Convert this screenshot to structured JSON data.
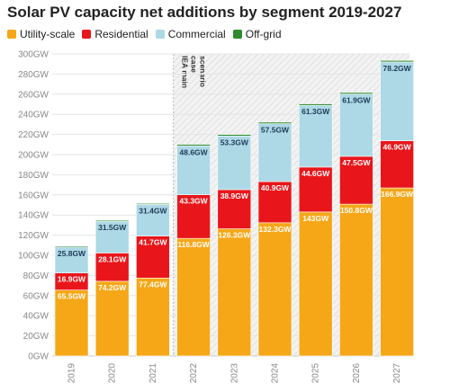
{
  "chart_data": {
    "type": "bar",
    "stacked": true,
    "title": "Solar PV capacity net additions by segment 2019-2027",
    "categories": [
      "2019",
      "2020",
      "2021",
      "2022",
      "2023",
      "2024",
      "2025",
      "2026",
      "2027"
    ],
    "series": [
      {
        "name": "Utility-scale",
        "color": "#f5a718",
        "values": [
          65.5,
          74.2,
          77.4,
          116.8,
          126.3,
          132.3,
          143,
          150.8,
          166.9
        ],
        "labels": [
          "65.5GW",
          "74.2GW",
          "77.4GW",
          "116.8GW",
          "126.3GW",
          "132.3GW",
          "143GW",
          "150.8GW",
          "166.9GW"
        ]
      },
      {
        "name": "Residential",
        "color": "#e8161b",
        "values": [
          16.9,
          28.1,
          41.7,
          43.3,
          38.9,
          40.9,
          44.6,
          47.5,
          46.9
        ],
        "labels": [
          "16.9GW",
          "28.1GW",
          "41.7GW",
          "43.3GW",
          "38.9GW",
          "40.9GW",
          "44.6GW",
          "47.5GW",
          "46.9GW"
        ]
      },
      {
        "name": "Commercial",
        "color": "#add8e6",
        "values": [
          25.8,
          31.5,
          31.4,
          48.6,
          53.3,
          57.5,
          61.3,
          61.9,
          78.2
        ],
        "labels": [
          "25.8GW",
          "31.5GW",
          "31.4GW",
          "48.6GW",
          "53.3GW",
          "57.5GW",
          "61.3GW",
          "61.9GW",
          "78.2GW"
        ]
      },
      {
        "name": "Off-grid",
        "color": "#2e8b2e",
        "values": [
          1.0,
          1.0,
          1.0,
          1.5,
          1.5,
          1.5,
          1.5,
          1.5,
          1.5
        ],
        "labels": [
          "",
          "",
          "",
          "",
          "",
          "",
          "",
          "",
          ""
        ]
      }
    ],
    "ylim": [
      0,
      300
    ],
    "yticks": [
      0,
      20,
      40,
      60,
      80,
      100,
      120,
      140,
      160,
      180,
      200,
      220,
      240,
      260,
      280,
      300
    ],
    "ytick_labels": [
      "0GW",
      "20GW",
      "40GW",
      "60GW",
      "80GW",
      "100GW",
      "120GW",
      "140GW",
      "160GW",
      "180GW",
      "200GW",
      "220GW",
      "240GW",
      "260GW",
      "280GW",
      "300GW"
    ],
    "grid": true,
    "legend_position": "top-left",
    "scenario_annotation": [
      "IEA main",
      "case",
      "scenario"
    ],
    "scenario_start_category": "2022"
  }
}
